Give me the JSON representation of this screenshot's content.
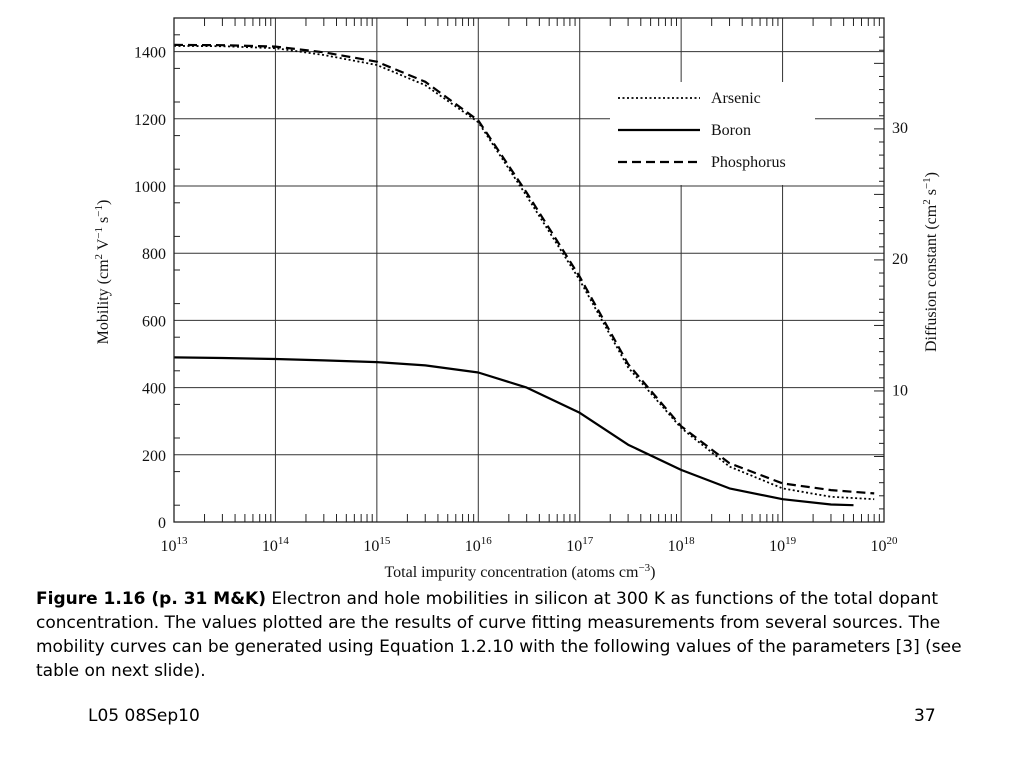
{
  "chart_data": {
    "type": "line",
    "xlabel": "Total impurity concentration (atoms cm",
    "xlabel_sup": "−3",
    "xlabel_end": ")",
    "ylabel": "Mobility (cm",
    "ylabel_sup1": "2",
    "ylabel_mid": " V",
    "ylabel_sup2": "−1",
    "ylabel_mid2": " s",
    "ylabel_sup3": "−1",
    "ylabel_end": ")",
    "y2label": "Diffusion constant (cm",
    "y2label_sup1": "2",
    "y2label_mid": " s",
    "y2label_sup2": "−1",
    "y2label_end": ")",
    "x_scale": "log",
    "xlim": [
      10000000000000.0,
      1e+20
    ],
    "ylim": [
      0,
      1500
    ],
    "grid": true,
    "legend_position": "top-right",
    "x_ticks": [
      {
        "base": "10",
        "exp": "13",
        "value": 10000000000000.0
      },
      {
        "base": "10",
        "exp": "14",
        "value": 100000000000000.0
      },
      {
        "base": "10",
        "exp": "15",
        "value": 1000000000000000.0
      },
      {
        "base": "10",
        "exp": "16",
        "value": 1e+16
      },
      {
        "base": "10",
        "exp": "17",
        "value": 1e+17
      },
      {
        "base": "10",
        "exp": "18",
        "value": 1e+18
      },
      {
        "base": "10",
        "exp": "19",
        "value": 1e+19
      },
      {
        "base": "10",
        "exp": "20",
        "value": 1e+20
      }
    ],
    "y_ticks": [
      0,
      200,
      400,
      600,
      800,
      1000,
      1200,
      1400
    ],
    "y2_ticks": [
      {
        "label": "10",
        "mobility": 395
      },
      {
        "label": "20",
        "mobility": 785
      },
      {
        "label": "30",
        "mobility": 1175
      }
    ],
    "series": [
      {
        "name": "Arsenic",
        "style": "dotted",
        "x": [
          10000000000000.0,
          30000000000000.0,
          100000000000000.0,
          300000000000000.0,
          1000000000000000.0,
          3000000000000000.0,
          1e+16,
          3e+16,
          1e+17,
          3e+17,
          1e+18,
          3e+18,
          1e+19,
          3e+19,
          8e+19
        ],
        "y": [
          1417,
          1416,
          1410,
          1390,
          1360,
          1300,
          1190,
          970,
          720,
          460,
          280,
          165,
          100,
          75,
          68
        ]
      },
      {
        "name": "Boron",
        "style": "solid",
        "x": [
          10000000000000.0,
          30000000000000.0,
          100000000000000.0,
          300000000000000.0,
          1000000000000000.0,
          3000000000000000.0,
          1e+16,
          3e+16,
          1e+17,
          3e+17,
          1e+18,
          3e+18,
          1e+19,
          3e+19,
          5e+19
        ],
        "y": [
          490,
          488,
          485,
          481,
          476,
          466,
          445,
          400,
          325,
          230,
          155,
          100,
          68,
          52,
          50
        ]
      },
      {
        "name": "Phosphorus",
        "style": "dashed",
        "x": [
          10000000000000.0,
          30000000000000.0,
          100000000000000.0,
          300000000000000.0,
          1000000000000000.0,
          3000000000000000.0,
          1e+16,
          3e+16,
          1e+17,
          3e+17,
          1e+18,
          3e+18,
          1e+19,
          3e+19,
          8e+19
        ],
        "y": [
          1420,
          1419,
          1415,
          1398,
          1370,
          1310,
          1195,
          980,
          730,
          470,
          285,
          175,
          115,
          95,
          85
        ]
      }
    ]
  },
  "caption": {
    "bold": "Figure 1.16  (p. 31 M&K)",
    "text": " Electron and hole mobilities in silicon at 300 K as functions of the total dopant concentration. The values plotted are the results of curve fitting measurements from several sources. The mobility curves can be generated using Equation 1.2.10 with the following values of the parameters [3] (see table on next slide)."
  },
  "footer": {
    "left": "L05 08Sep10",
    "right": "37"
  }
}
